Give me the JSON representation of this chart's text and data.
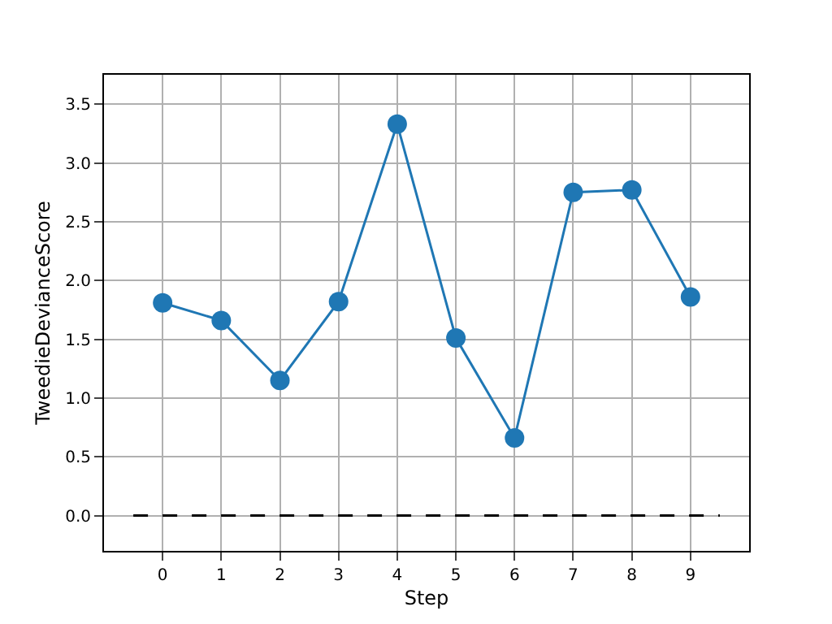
{
  "chart_data": {
    "type": "line",
    "xlabel": "Step",
    "ylabel": "TweedieDevianceScore",
    "xlim": [
      -1,
      10
    ],
    "xticks": [
      0,
      1,
      2,
      3,
      4,
      5,
      6,
      7,
      8,
      9
    ],
    "ylim": [
      -0.3,
      3.75
    ],
    "yticks": [
      {
        "value": 0,
        "label": "0.0"
      },
      0.5,
      {
        "value": 1,
        "label": "1.0"
      },
      1.5,
      {
        "value": 2,
        "label": "2.0"
      },
      2.5,
      {
        "value": 3,
        "label": "3.0"
      },
      3.5
    ],
    "grid": true,
    "legend": false,
    "series": [
      {
        "x": [
          0,
          1,
          2,
          3,
          4,
          5,
          6,
          7,
          8,
          9
        ],
        "values": [
          1.81,
          1.66,
          1.15,
          1.82,
          3.33,
          1.51,
          0.66,
          2.75,
          2.77,
          1.86
        ],
        "color": "#1f77b4",
        "marker": "circle",
        "line_style": "solid"
      },
      {
        "x": [
          -0.5,
          9.5
        ],
        "values": [
          0,
          0
        ],
        "color": "#000000",
        "marker": "none",
        "line_style": "dashed"
      }
    ]
  }
}
